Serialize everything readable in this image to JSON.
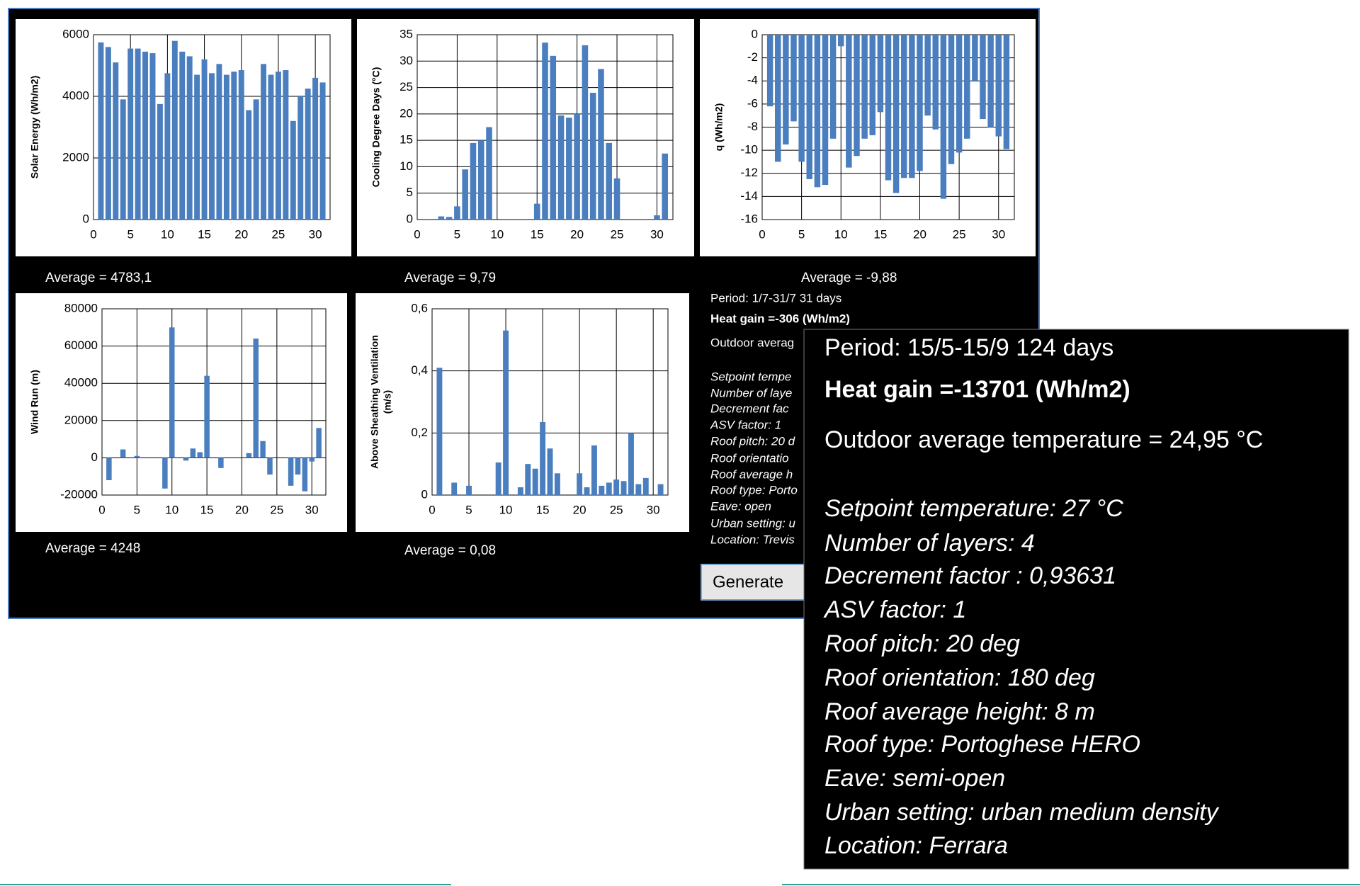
{
  "chart_data": [
    {
      "type": "bar",
      "y_label": "Solar Energy (Wh/m2)",
      "caption": "Average = 4783,1",
      "color": "#4a7ebf",
      "grid": true,
      "x": [
        1,
        2,
        3,
        4,
        5,
        6,
        7,
        8,
        9,
        10,
        11,
        12,
        13,
        14,
        15,
        16,
        17,
        18,
        19,
        20,
        21,
        22,
        23,
        24,
        25,
        26,
        27,
        28,
        29,
        30,
        31
      ],
      "values": [
        5750,
        5600,
        5100,
        3900,
        5550,
        5550,
        5450,
        5400,
        3750,
        4750,
        5800,
        5450,
        5300,
        4700,
        5200,
        4750,
        5050,
        4700,
        4800,
        4850,
        3550,
        3900,
        5050,
        4700,
        4800,
        4850,
        3200,
        4000,
        4250,
        4600,
        4450
      ],
      "xlim": [
        0,
        32
      ],
      "xticks": [
        0,
        5,
        10,
        15,
        20,
        25,
        30
      ],
      "ylim": [
        0,
        6000
      ],
      "yticks": [
        0,
        2000,
        4000,
        6000
      ]
    },
    {
      "type": "bar",
      "y_label": "Cooling Degree Days (°C)",
      "caption": "Average = 9,79",
      "color": "#4a7ebf",
      "grid": true,
      "x": [
        1,
        2,
        3,
        4,
        5,
        6,
        7,
        8,
        9,
        10,
        11,
        12,
        13,
        14,
        15,
        16,
        17,
        18,
        19,
        20,
        21,
        22,
        23,
        24,
        25,
        26,
        27,
        28,
        29,
        30,
        31
      ],
      "values": [
        0,
        0,
        0.6,
        0.5,
        2.5,
        9.5,
        14.5,
        15,
        17.5,
        0,
        0,
        0,
        0,
        0,
        3,
        33.5,
        31,
        19.7,
        19.3,
        20,
        33,
        24,
        28.5,
        14.5,
        7.8,
        0,
        0,
        0,
        0,
        0.8,
        12.5
      ],
      "xlim": [
        0,
        32
      ],
      "xticks": [
        0,
        5,
        10,
        15,
        20,
        25,
        30
      ],
      "ylim": [
        0,
        35
      ],
      "yticks": [
        0,
        5,
        10,
        15,
        20,
        25,
        30,
        35
      ]
    },
    {
      "type": "bar",
      "y_label": "q (Wh/m2)",
      "caption": "Average = -9,88",
      "color": "#4a7ebf",
      "grid": true,
      "x": [
        1,
        2,
        3,
        4,
        5,
        6,
        7,
        8,
        9,
        10,
        11,
        12,
        13,
        14,
        15,
        16,
        17,
        18,
        19,
        20,
        21,
        22,
        23,
        24,
        25,
        26,
        27,
        28,
        29,
        30,
        31
      ],
      "values": [
        -6.2,
        -11,
        -9.5,
        -7.5,
        -11,
        -12.5,
        -13.2,
        -13,
        -9,
        -1,
        -11.5,
        -10.5,
        -9,
        -8.7,
        -6.7,
        -12.6,
        -13.7,
        -12.4,
        -12.4,
        -11.8,
        -7,
        -8.2,
        -14.2,
        -11.2,
        -10.2,
        -9,
        -4,
        -7.3,
        -8,
        -8.8,
        -9.9
      ],
      "xlim": [
        0,
        32
      ],
      "xticks": [
        0,
        5,
        10,
        15,
        20,
        25,
        30
      ],
      "ylim": [
        -16,
        0
      ],
      "yticks": [
        -16,
        -14,
        -12,
        -10,
        -8,
        -6,
        -4,
        -2,
        0
      ]
    },
    {
      "type": "bar",
      "y_label": "Wind Run (m)",
      "caption": "Average = 4248",
      "color": "#4a7ebf",
      "grid": true,
      "x": [
        1,
        2,
        3,
        4,
        5,
        6,
        7,
        8,
        9,
        10,
        11,
        12,
        13,
        14,
        15,
        16,
        17,
        18,
        19,
        20,
        21,
        22,
        23,
        24,
        25,
        26,
        27,
        28,
        29,
        30,
        31
      ],
      "values": [
        -12000,
        0,
        4500,
        0,
        1000,
        0,
        0,
        0,
        -16500,
        70000,
        0,
        -1500,
        5000,
        3000,
        44000,
        0,
        -5500,
        0,
        0,
        0,
        2500,
        64000,
        9000,
        -9000,
        0,
        0,
        -15000,
        -9000,
        -18000,
        -2000,
        16000
      ],
      "xlim": [
        0,
        32
      ],
      "xticks": [
        0,
        5,
        10,
        15,
        20,
        25,
        30
      ],
      "ylim": [
        -20000,
        80000
      ],
      "yticks": [
        -20000,
        0,
        20000,
        40000,
        60000,
        80000
      ]
    },
    {
      "type": "bar",
      "y_label": [
        "Above Sheathing Ventilation",
        "(m/s)"
      ],
      "caption": "Average = 0,08",
      "color": "#4a7ebf",
      "grid": true,
      "x": [
        1,
        2,
        3,
        4,
        5,
        6,
        7,
        8,
        9,
        10,
        11,
        12,
        13,
        14,
        15,
        16,
        17,
        18,
        19,
        20,
        21,
        22,
        23,
        24,
        25,
        26,
        27,
        28,
        29,
        30,
        31
      ],
      "values": [
        0.41,
        0,
        0.04,
        0,
        0.03,
        0,
        0,
        0,
        0.105,
        0.53,
        0,
        0.025,
        0.1,
        0.085,
        0.235,
        0.15,
        0.07,
        0,
        0,
        0.07,
        0.025,
        0.16,
        0.03,
        0.04,
        0.05,
        0.045,
        0.2,
        0.035,
        0.055,
        0,
        0.035
      ],
      "xlim": [
        0,
        32
      ],
      "xticks": [
        0,
        5,
        10,
        15,
        20,
        25,
        30
      ],
      "ylim": [
        0,
        0.6
      ],
      "yticks": [
        0,
        {
          "value": 0.2,
          "label": "0,2"
        },
        {
          "value": 0.4,
          "label": "0,4"
        },
        {
          "value": 0.6,
          "label": "0,6"
        }
      ]
    }
  ],
  "panel": {
    "lines": [
      "Period: 1/7-31/7    31 days",
      "Heat gain =-306 (Wh/m2)",
      "Outdoor averag",
      "Setpoint tempe",
      "Number of laye",
      "Decrement fac",
      "ASV factor: 1",
      "Roof pitch: 20 d",
      "Roof orientatio",
      "Roof average h",
      "Roof type: Porto",
      "Eave: open",
      "Urban setting: u",
      "Location: Trevis"
    ],
    "button": "Generate"
  },
  "overlay": {
    "lines": [
      "Period: 15/5-15/9     124 days",
      "Heat gain =-13701 (Wh/m2)",
      "Outdoor average temperature = 24,95 °C",
      "Setpoint temperature: 27 °C",
      "Number of layers: 4",
      "Decrement factor : 0,93631",
      "ASV factor: 1",
      "Roof pitch: 20 deg",
      "Roof orientation: 180 deg",
      "Roof average height: 8 m",
      "Roof type: Portoghese  HERO",
      "Eave: semi-open",
      "Urban setting: urban  medium density",
      "Location: Ferrara"
    ]
  }
}
